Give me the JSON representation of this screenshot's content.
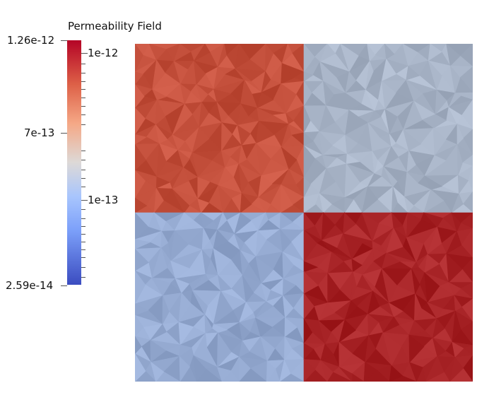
{
  "colorbar": {
    "title": "Permeability Field",
    "range_labels": {
      "max": "1.26e-12",
      "mid": "7e-13",
      "min": "2.59e-14"
    },
    "log_labels": {
      "upper": "1e-12",
      "lower": "1e-13"
    },
    "colormap_colors": [
      "#b40426",
      "#dd6047",
      "#f5a886",
      "#ddd9d7",
      "#a8c5fd",
      "#7b9ff9",
      "#3b4cc0"
    ]
  },
  "render": {
    "quadrant_colors": {
      "top_left": "#c4503c",
      "top_right": "#a7b3c6",
      "bottom_left": "#94a9d0",
      "bottom_right": "#a72326"
    }
  }
}
